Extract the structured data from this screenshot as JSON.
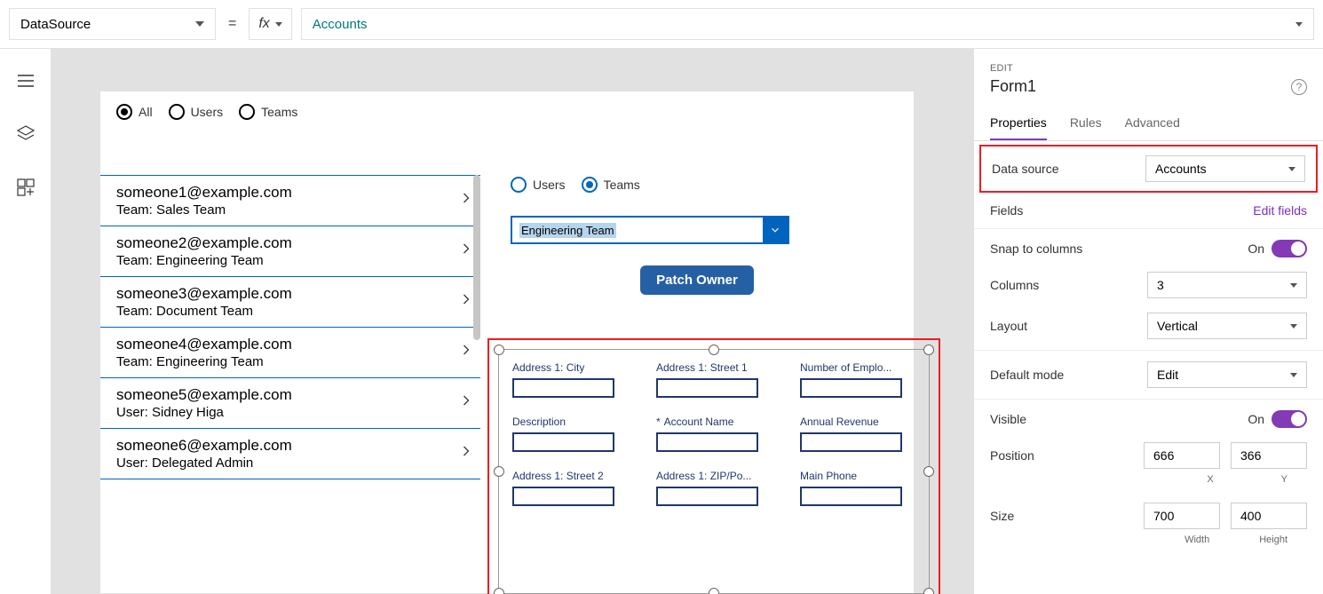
{
  "formula_bar": {
    "property": "DataSource",
    "eq": "=",
    "fx": "fx",
    "value": "Accounts"
  },
  "canvas": {
    "top_radios": [
      {
        "label": "All",
        "selected": true
      },
      {
        "label": "Users",
        "selected": false
      },
      {
        "label": "Teams",
        "selected": false
      }
    ],
    "list": [
      {
        "email": "someone1@example.com",
        "sub": "Team: Sales Team"
      },
      {
        "email": "someone2@example.com",
        "sub": "Team: Engineering Team"
      },
      {
        "email": "someone3@example.com",
        "sub": "Team: Document Team"
      },
      {
        "email": "someone4@example.com",
        "sub": "Team: Engineering Team"
      },
      {
        "email": "someone5@example.com",
        "sub": "User: Sidney Higa"
      },
      {
        "email": "someone6@example.com",
        "sub": "User: Delegated Admin"
      }
    ],
    "right_radios": [
      {
        "label": "Users",
        "selected": false
      },
      {
        "label": "Teams",
        "selected": true
      }
    ],
    "team_select": "Engineering Team",
    "patch_button": "Patch Owner",
    "form_fields": [
      {
        "label": "Address 1: City",
        "required": false
      },
      {
        "label": "Address 1: Street 1",
        "required": false
      },
      {
        "label": "Number of Emplo...",
        "required": false
      },
      {
        "label": "Description",
        "required": false
      },
      {
        "label": "Account Name",
        "required": true
      },
      {
        "label": "Annual Revenue",
        "required": false
      },
      {
        "label": "Address 1: Street 2",
        "required": false
      },
      {
        "label": "Address 1: ZIP/Po...",
        "required": false
      },
      {
        "label": "Main Phone",
        "required": false
      }
    ]
  },
  "props": {
    "edit_label": "EDIT",
    "name": "Form1",
    "tabs": {
      "properties": "Properties",
      "rules": "Rules",
      "advanced": "Advanced"
    },
    "data_source": {
      "label": "Data source",
      "value": "Accounts"
    },
    "fields": {
      "label": "Fields",
      "link": "Edit fields"
    },
    "snap": {
      "label": "Snap to columns",
      "value": "On"
    },
    "columns": {
      "label": "Columns",
      "value": "3"
    },
    "layout": {
      "label": "Layout",
      "value": "Vertical"
    },
    "default_mode": {
      "label": "Default mode",
      "value": "Edit"
    },
    "visible": {
      "label": "Visible",
      "value": "On"
    },
    "position": {
      "label": "Position",
      "x": "666",
      "y": "366",
      "xl": "X",
      "yl": "Y"
    },
    "size": {
      "label": "Size",
      "w": "700",
      "h": "400",
      "wl": "Width",
      "hl": "Height"
    }
  },
  "style": {
    "accent_purple": "#833ab4",
    "accent_blue": "#0064bf",
    "highlight_red": "#ed1c24",
    "form_label_color": "#20376b",
    "formula_text_color": "#007a73"
  }
}
